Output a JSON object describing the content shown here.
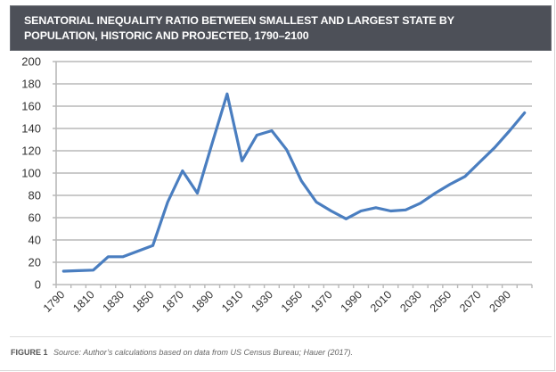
{
  "title": "SENATORIAL INEQUALITY RATIO BETWEEN SMALLEST AND LARGEST STATE BY POPULATION, HISTORIC AND PROJECTED, 1790–2100",
  "title_lines": [
    "SENATORIAL INEQUALITY RATIO BETWEEN SMALLEST AND LARGEST STATE BY",
    "POPULATION, HISTORIC AND PROJECTED, 1790–2100"
  ],
  "caption": {
    "figure_label": "FIGURE 1",
    "source": "Source: Author’s calculations based on data from US Census Bureau; Hauer (2017)."
  },
  "colors": {
    "banner": "#4d5058",
    "line": "#4a7ec0",
    "grid": "#b9b9b9"
  },
  "chart_data": {
    "type": "line",
    "title": "SENATORIAL INEQUALITY RATIO BETWEEN SMALLEST AND LARGEST STATE BY POPULATION, HISTORIC AND PROJECTED, 1790–2100",
    "xlabel": "",
    "ylabel": "",
    "x": [
      1790,
      1800,
      1810,
      1820,
      1830,
      1840,
      1850,
      1860,
      1870,
      1880,
      1890,
      1900,
      1910,
      1920,
      1930,
      1940,
      1950,
      1960,
      1970,
      1980,
      1990,
      2000,
      2010,
      2020,
      2030,
      2040,
      2050,
      2060,
      2070,
      2080,
      2090,
      2100
    ],
    "series": [
      {
        "name": "Senatorial inequality ratio",
        "values": [
          12,
          12.5,
          13,
          25,
          25,
          30,
          35,
          74,
          102,
          82,
          127,
          171,
          111,
          134,
          138,
          121,
          93,
          74,
          66,
          59,
          66,
          69,
          66,
          67,
          73,
          82,
          90,
          97,
          110,
          123,
          138,
          154
        ]
      }
    ],
    "x_tick_labels": [
      "1790",
      "1810",
      "1830",
      "1850",
      "1870",
      "1890",
      "1910",
      "1930",
      "1950",
      "1970",
      "1990",
      "2010",
      "2030",
      "2050",
      "2070",
      "2090"
    ],
    "y_ticks": [
      0,
      20,
      40,
      60,
      80,
      100,
      120,
      140,
      160,
      180,
      200
    ],
    "ylim": [
      0,
      200
    ],
    "grid": true,
    "legend": "none"
  }
}
